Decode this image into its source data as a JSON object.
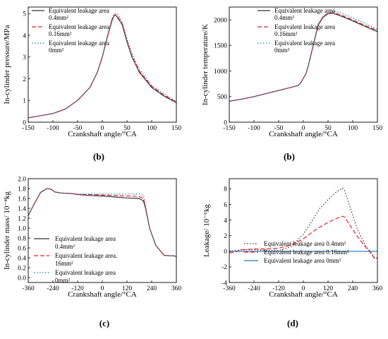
{
  "chart_data": [
    {
      "type": "line",
      "caption": "(b)",
      "xlabel": "Crankshaft angle/°CA",
      "ylabel": "In-cylinder pressure/MPa",
      "xlim": [
        -150,
        150
      ],
      "ylim": [
        0,
        5.3
      ],
      "xticks": [
        "-150",
        "-100",
        "-50",
        "0",
        "50",
        "100",
        "150"
      ],
      "xtick_values": [
        -150,
        -100,
        -50,
        0,
        50,
        100,
        150
      ],
      "yticks": [
        "0",
        "1",
        "2",
        "3",
        "4",
        "5"
      ],
      "ytick_values": [
        0,
        1,
        2,
        3,
        4,
        5
      ],
      "legend_position": "top-left",
      "series": [
        {
          "name": "Equivalent leakage area 0.4mm²",
          "legend_lines": [
            "Equivalent leakage area",
            "0.4mm²"
          ],
          "style": "solid",
          "color": "#333333",
          "x": [
            -150,
            -125,
            -100,
            -75,
            -50,
            -25,
            -10,
            0,
            10,
            20,
            25,
            30,
            40,
            50,
            60,
            75,
            100,
            125,
            150
          ],
          "y": [
            0.2,
            0.3,
            0.4,
            0.6,
            1.0,
            1.6,
            2.3,
            3.0,
            3.9,
            4.7,
            4.95,
            4.85,
            4.5,
            3.7,
            3.0,
            2.3,
            1.6,
            1.2,
            0.9
          ]
        },
        {
          "name": "Equivalent leakage area 0.16mm²",
          "legend_lines": [
            "Equivalent leakage area",
            "0.16mm²"
          ],
          "style": "dashed",
          "color": "#e8202a",
          "x": [
            -150,
            -125,
            -100,
            -75,
            -50,
            -25,
            -10,
            0,
            10,
            20,
            25,
            30,
            40,
            50,
            60,
            75,
            100,
            125,
            150
          ],
          "y": [
            0.2,
            0.3,
            0.4,
            0.6,
            1.0,
            1.6,
            2.3,
            3.0,
            3.9,
            4.75,
            4.95,
            4.9,
            4.55,
            3.75,
            3.05,
            2.35,
            1.65,
            1.25,
            0.92
          ]
        },
        {
          "name": "Equivalent leakage area 0mm²",
          "legend_lines": [
            "Equivalent leakage area",
            "0mm²"
          ],
          "style": "dotted",
          "color": "#1f77b4",
          "x": [
            -150,
            -125,
            -100,
            -75,
            -50,
            -25,
            -10,
            0,
            10,
            20,
            25,
            30,
            40,
            50,
            60,
            75,
            100,
            125,
            150
          ],
          "y": [
            0.2,
            0.3,
            0.4,
            0.6,
            1.0,
            1.6,
            2.3,
            3.0,
            3.95,
            4.8,
            5.0,
            5.0,
            4.65,
            3.85,
            3.15,
            2.45,
            1.7,
            1.3,
            0.95
          ]
        }
      ]
    },
    {
      "type": "line",
      "caption": "(b)",
      "xlabel": "Crankshaft angle/°CA",
      "ylabel": "In-cylinder temperature/K",
      "xlim": [
        -150,
        150
      ],
      "ylim": [
        0,
        2250
      ],
      "xticks": [
        "-150",
        "-100",
        "-50",
        "0",
        "50",
        "100",
        "150"
      ],
      "xtick_values": [
        -150,
        -100,
        -50,
        0,
        50,
        100,
        150
      ],
      "yticks": [
        "0",
        "500",
        "1000",
        "1500",
        "2000"
      ],
      "ytick_values": [
        0,
        500,
        1000,
        1500,
        2000
      ],
      "legend_position": "top-right",
      "series": [
        {
          "name": "Equivalent leakage area 0.4mm²",
          "legend_lines": [
            "Equivalent leakage area",
            "0.4mm²"
          ],
          "style": "solid",
          "color": "#333333",
          "x": [
            -150,
            -125,
            -100,
            -75,
            -50,
            -25,
            -10,
            -5,
            0,
            5,
            10,
            20,
            30,
            40,
            50,
            60,
            75,
            100,
            125,
            150
          ],
          "y": [
            410,
            450,
            500,
            560,
            620,
            680,
            720,
            770,
            860,
            940,
            1100,
            1500,
            1900,
            2050,
            2120,
            2130,
            2080,
            1980,
            1870,
            1770
          ]
        },
        {
          "name": "Equivalent leakage area 0.16mm²",
          "legend_lines": [
            "Equivalent leakage area",
            "0.16mm²"
          ],
          "style": "dashed",
          "color": "#e8202a",
          "x": [
            -150,
            -125,
            -100,
            -75,
            -50,
            -25,
            -10,
            -5,
            0,
            5,
            10,
            20,
            30,
            40,
            50,
            60,
            75,
            100,
            125,
            150
          ],
          "y": [
            410,
            450,
            500,
            560,
            620,
            680,
            720,
            770,
            860,
            940,
            1100,
            1500,
            1910,
            2060,
            2130,
            2140,
            2100,
            2000,
            1890,
            1790
          ]
        },
        {
          "name": "Equivalent leakage area 0mm²",
          "legend_lines": [
            "Equivalent leakage area",
            "0mm²"
          ],
          "style": "dotted",
          "color": "#1f77b4",
          "x": [
            -150,
            -125,
            -100,
            -75,
            -50,
            -25,
            -10,
            -5,
            0,
            5,
            10,
            20,
            30,
            40,
            50,
            60,
            75,
            100,
            125,
            150
          ],
          "y": [
            410,
            450,
            500,
            560,
            620,
            680,
            720,
            770,
            860,
            940,
            1100,
            1500,
            1920,
            2070,
            2140,
            2170,
            2140,
            2040,
            1930,
            1810
          ]
        }
      ]
    },
    {
      "type": "line",
      "caption": "(c)",
      "xlabel": "Crankshaft angle/°CA",
      "ylabel": "In-cylinder mass/ 10⁻⁴kg",
      "xlim": [
        -360,
        360
      ],
      "ylim": [
        -0.1,
        2.0
      ],
      "xticks": [
        "-360",
        "-240",
        "-120",
        "0",
        "120",
        "240",
        "360"
      ],
      "xtick_values": [
        -360,
        -240,
        -120,
        0,
        120,
        240,
        360
      ],
      "yticks": [
        "0.0",
        "0.2",
        "0.4",
        "0.6",
        "0.8",
        "1.0",
        "1.2",
        "1.4",
        "1.6",
        "1.8",
        "2.0"
      ],
      "ytick_values": [
        0,
        0.2,
        0.4,
        0.6,
        0.8,
        1.0,
        1.2,
        1.4,
        1.6,
        1.8,
        2.0
      ],
      "legend_position": "bottom-center",
      "series": [
        {
          "name": "Equivalent leakage area 0.4mm²",
          "legend_lines": [
            "Equivalent leakage area",
            "0.4mm²"
          ],
          "style": "solid",
          "color": "#333333",
          "x": [
            -360,
            -330,
            -300,
            -270,
            -250,
            -230,
            -200,
            -150,
            -120,
            -60,
            0,
            60,
            120,
            180,
            200,
            210,
            230,
            260,
            300,
            330,
            350,
            360
          ],
          "y": [
            1.25,
            1.5,
            1.72,
            1.8,
            1.79,
            1.73,
            1.71,
            1.7,
            1.68,
            1.66,
            1.65,
            1.63,
            1.61,
            1.6,
            1.55,
            1.4,
            1.0,
            0.65,
            0.45,
            0.44,
            0.44,
            0.42
          ]
        },
        {
          "name": "Equivalent leakage area. 16mm²",
          "legend_lines": [
            "Equivalent leakage area.",
            "16mm²"
          ],
          "style": "dashed",
          "color": "#e8202a",
          "x": [
            -360,
            -330,
            -300,
            -270,
            -250,
            -230,
            -200,
            -150,
            -120,
            -60,
            0,
            60,
            120,
            180,
            200,
            210,
            230,
            260,
            300,
            330,
            350,
            360
          ],
          "y": [
            1.25,
            1.5,
            1.72,
            1.8,
            1.79,
            1.73,
            1.71,
            1.7,
            1.68,
            1.68,
            1.67,
            1.66,
            1.65,
            1.64,
            1.6,
            1.42,
            1.0,
            0.65,
            0.45,
            0.44,
            0.44,
            0.42
          ]
        },
        {
          "name": "Equivalent leakage area 0mm²",
          "legend_lines": [
            "Equivalent leakage area",
            "0mm²"
          ],
          "style": "dotted",
          "color": "#1f77b4",
          "x": [
            -360,
            -330,
            -300,
            -270,
            -250,
            -230,
            -200,
            -150,
            -120,
            -60,
            0,
            60,
            120,
            180,
            200,
            210,
            230,
            260,
            300,
            330,
            350,
            360
          ],
          "y": [
            1.25,
            1.5,
            1.72,
            1.8,
            1.79,
            1.73,
            1.71,
            1.7,
            1.69,
            1.69,
            1.69,
            1.69,
            1.69,
            1.69,
            1.66,
            1.45,
            1.0,
            0.65,
            0.45,
            0.44,
            0.44,
            0.42
          ]
        }
      ]
    },
    {
      "type": "line",
      "caption": "(d)",
      "xlabel": "Crankshaft angle/°CA",
      "ylabel": "Leakage/ 10⁻⁶kg",
      "xlim": [
        -360,
        360
      ],
      "ylim": [
        -4,
        9.3
      ],
      "xticks": [
        "-360",
        "-240",
        "-120",
        "0",
        "120",
        "240",
        "360"
      ],
      "xtick_values": [
        -360,
        -240,
        -120,
        0,
        120,
        240,
        360
      ],
      "yticks": [
        "-4",
        "-2",
        "0",
        "2",
        "4",
        "6",
        "8"
      ],
      "ytick_values": [
        -4,
        -2,
        0,
        2,
        4,
        6,
        8
      ],
      "legend_position": "bottom-right",
      "series": [
        {
          "name": "Equivalent leakage area 0.4mm²",
          "legend_lines": [
            "Equivalent leakage area 0.4mm²"
          ],
          "style": "dotted",
          "color": "#333333",
          "x": [
            -360,
            -330,
            -300,
            -240,
            -180,
            -120,
            -60,
            0,
            40,
            80,
            120,
            160,
            190,
            200,
            220,
            260,
            300,
            330,
            345,
            360
          ],
          "y": [
            0,
            0.1,
            0.2,
            0.2,
            0.1,
            0.1,
            0.6,
            2.2,
            3.8,
            5.5,
            6.6,
            7.6,
            8.1,
            7.8,
            6.2,
            3.0,
            0.8,
            -0.2,
            -0.8,
            -0.9
          ]
        },
        {
          "name": "Equivalent leakage area 0.16mm²",
          "legend_lines": [
            "Equivalent leakage area 0.16mm²"
          ],
          "style": "dashed",
          "color": "#e8202a",
          "x": [
            -360,
            -330,
            -300,
            -240,
            -180,
            -120,
            -60,
            0,
            40,
            80,
            120,
            160,
            190,
            200,
            220,
            260,
            300,
            330,
            345,
            360
          ],
          "y": [
            -0.2,
            -0.1,
            0.2,
            0.3,
            0.3,
            0.4,
            0.8,
            1.6,
            2.4,
            3.1,
            3.7,
            4.2,
            4.5,
            4.4,
            3.6,
            2.0,
            0.6,
            -0.3,
            -0.9,
            -0.8
          ]
        },
        {
          "name": "Equivalent leakage area 0mm²",
          "legend_lines": [
            "Equivalent leakage area 0mm²"
          ],
          "style": "solid",
          "color": "#1f77b4",
          "x": [
            -360,
            360
          ],
          "y": [
            0,
            0
          ]
        }
      ]
    }
  ]
}
